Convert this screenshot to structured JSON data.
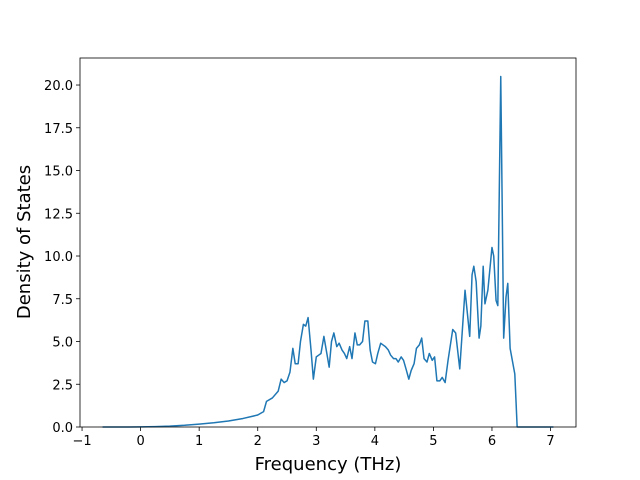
{
  "chart_data": {
    "type": "line",
    "xlabel": "Frequency (THz)",
    "ylabel": "Density of States",
    "x": [
      -0.65,
      -0.2,
      0,
      0.25,
      0.5,
      0.75,
      1.0,
      1.25,
      1.5,
      1.75,
      2.0,
      2.1,
      2.15,
      2.25,
      2.35,
      2.4,
      2.45,
      2.5,
      2.55,
      2.6,
      2.64,
      2.69,
      2.73,
      2.78,
      2.82,
      2.86,
      2.91,
      2.95,
      3.0,
      3.04,
      3.08,
      3.13,
      3.17,
      3.22,
      3.26,
      3.3,
      3.35,
      3.39,
      3.44,
      3.48,
      3.52,
      3.57,
      3.61,
      3.66,
      3.7,
      3.74,
      3.79,
      3.83,
      3.88,
      3.92,
      3.96,
      4.01,
      4.05,
      4.1,
      4.14,
      4.18,
      4.23,
      4.27,
      4.32,
      4.36,
      4.4,
      4.45,
      4.49,
      4.54,
      4.58,
      4.62,
      4.67,
      4.71,
      4.76,
      4.8,
      4.84,
      4.89,
      4.93,
      4.98,
      5.02,
      5.06,
      5.11,
      5.15,
      5.2,
      5.25,
      5.33,
      5.38,
      5.45,
      5.54,
      5.62,
      5.66,
      5.69,
      5.73,
      5.78,
      5.81,
      5.85,
      5.88,
      5.93,
      6.0,
      6.03,
      6.07,
      6.1,
      6.15,
      6.2,
      6.24,
      6.27,
      6.31,
      6.39,
      6.43,
      7.05
    ],
    "series": [
      {
        "color": "#1f77b4",
        "values": [
          0,
          0,
          0.005,
          0.02,
          0.05,
          0.1,
          0.17,
          0.25,
          0.35,
          0.5,
          0.7,
          0.9,
          1.5,
          1.7,
          2.1,
          2.8,
          2.6,
          2.7,
          3.2,
          4.6,
          3.7,
          3.7,
          5.0,
          6.0,
          5.9,
          6.4,
          4.5,
          2.8,
          4.1,
          4.2,
          4.3,
          5.3,
          4.5,
          3.5,
          5.0,
          5.5,
          4.7,
          4.9,
          4.5,
          4.3,
          4.0,
          4.7,
          4.0,
          5.5,
          4.8,
          4.8,
          5.0,
          6.2,
          6.2,
          4.5,
          3.8,
          3.7,
          4.3,
          4.9,
          4.8,
          4.7,
          4.5,
          4.2,
          4.0,
          4.0,
          3.8,
          4.1,
          3.9,
          3.3,
          2.8,
          3.3,
          3.7,
          4.6,
          4.8,
          5.2,
          4.0,
          3.8,
          4.3,
          3.9,
          4.1,
          2.7,
          2.7,
          2.9,
          2.6,
          3.9,
          5.7,
          5.5,
          3.4,
          8.0,
          5.3,
          8.9,
          9.4,
          8.5,
          5.2,
          5.9,
          9.4,
          7.2,
          8.0,
          10.5,
          10.0,
          7.4,
          7.1,
          20.5,
          5.2,
          7.6,
          8.4,
          4.6,
          3.1,
          0,
          0
        ]
      }
    ],
    "xlim": [
      -1.035,
      7.435
    ],
    "xticks": [
      {
        "value": -1,
        "label": "−1"
      },
      0,
      1,
      2,
      3,
      4,
      5,
      6,
      7
    ],
    "ylim": [
      0,
      21.58
    ],
    "yticks": [
      {
        "value": 0,
        "label": "0.0"
      },
      {
        "value": 2.5,
        "label": "2.5"
      },
      {
        "value": 5,
        "label": "5.0"
      },
      {
        "value": 7.5,
        "label": "7.5"
      },
      {
        "value": 10,
        "label": "10.0"
      },
      {
        "value": 12.5,
        "label": "12.5"
      },
      {
        "value": 15,
        "label": "15.0"
      },
      {
        "value": 17.5,
        "label": "17.5"
      },
      {
        "value": 20,
        "label": "20.0"
      }
    ],
    "grid": false
  }
}
